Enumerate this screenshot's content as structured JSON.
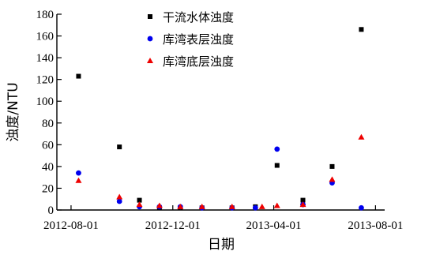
{
  "chart_data": {
    "type": "scatter",
    "xlabel": "日期",
    "ylabel": "浊度/NTU",
    "xlim": [
      "2012-07-15",
      "2013-08-12"
    ],
    "ylim": [
      0,
      180
    ],
    "yticks": [
      0,
      20,
      40,
      60,
      80,
      100,
      120,
      140,
      160,
      180
    ],
    "xticks": [
      "2012-08-01",
      "2012-12-01",
      "2013-04-01",
      "2013-08-01"
    ],
    "legend_position": "top-center",
    "series": [
      {
        "name": "干流水体浊度",
        "marker": "square",
        "color": "#000000",
        "points": [
          {
            "x": "2012-08-10",
            "y": 123
          },
          {
            "x": "2012-09-28",
            "y": 58
          },
          {
            "x": "2012-10-22",
            "y": 9
          },
          {
            "x": "2012-11-15",
            "y": 2
          },
          {
            "x": "2012-12-10",
            "y": 2
          },
          {
            "x": "2013-01-05",
            "y": 2
          },
          {
            "x": "2013-02-10",
            "y": 2
          },
          {
            "x": "2013-03-10",
            "y": 3
          },
          {
            "x": "2013-04-05",
            "y": 41
          },
          {
            "x": "2013-05-06",
            "y": 9
          },
          {
            "x": "2013-06-10",
            "y": 40
          },
          {
            "x": "2013-07-15",
            "y": 166
          }
        ]
      },
      {
        "name": "库湾表层浊度",
        "marker": "circle",
        "color": "#0000ee",
        "points": [
          {
            "x": "2012-08-10",
            "y": 34
          },
          {
            "x": "2012-09-28",
            "y": 8
          },
          {
            "x": "2012-10-22",
            "y": 3
          },
          {
            "x": "2012-11-15",
            "y": 3
          },
          {
            "x": "2012-12-10",
            "y": 3
          },
          {
            "x": "2013-01-05",
            "y": 2
          },
          {
            "x": "2013-02-10",
            "y": 2
          },
          {
            "x": "2013-03-10",
            "y": 2
          },
          {
            "x": "2013-04-05",
            "y": 56
          },
          {
            "x": "2013-05-06",
            "y": 5
          },
          {
            "x": "2013-06-10",
            "y": 25
          },
          {
            "x": "2013-07-15",
            "y": 2
          }
        ]
      },
      {
        "name": "库湾底层浊度",
        "marker": "triangle",
        "color": "#ee0000",
        "points": [
          {
            "x": "2012-08-10",
            "y": 27
          },
          {
            "x": "2012-09-28",
            "y": 12
          },
          {
            "x": "2012-10-22",
            "y": 5
          },
          {
            "x": "2012-11-15",
            "y": 4
          },
          {
            "x": "2012-12-10",
            "y": 3
          },
          {
            "x": "2013-01-05",
            "y": 3
          },
          {
            "x": "2013-02-10",
            "y": 3
          },
          {
            "x": "2013-03-18",
            "y": 3
          },
          {
            "x": "2013-04-05",
            "y": 4
          },
          {
            "x": "2013-05-06",
            "y": 5
          },
          {
            "x": "2013-06-10",
            "y": 28
          },
          {
            "x": "2013-07-15",
            "y": 67
          }
        ]
      }
    ]
  }
}
